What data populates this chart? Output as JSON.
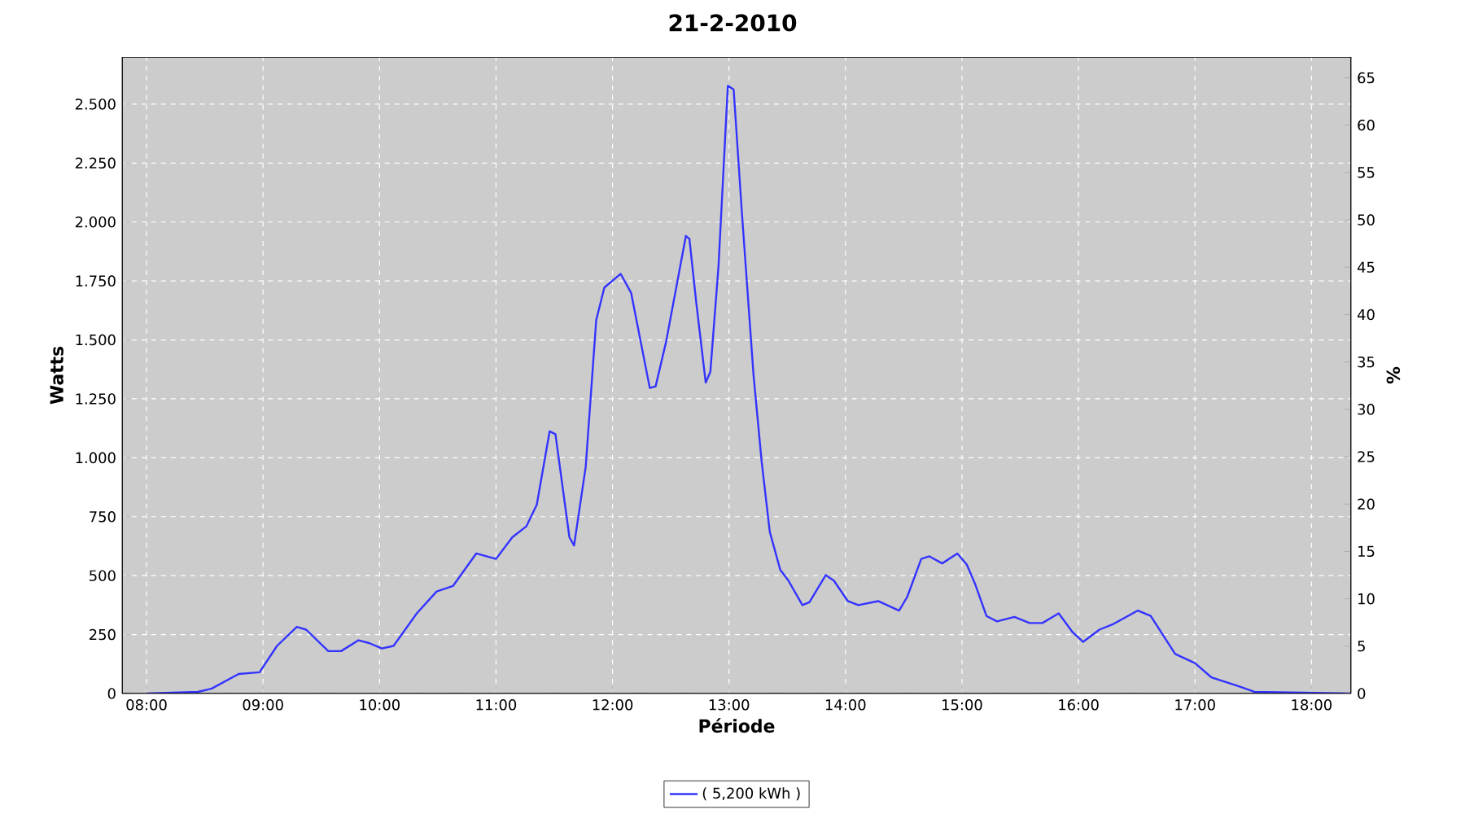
{
  "chart_data": {
    "type": "line",
    "title": "21-2-2010",
    "xlabel": "Période",
    "ylabel": "Watts",
    "y2label": "%",
    "x": [
      8.0,
      8.44,
      8.56,
      8.79,
      8.97,
      9.12,
      9.29,
      9.37,
      9.56,
      9.67,
      9.82,
      9.91,
      10.02,
      10.12,
      10.32,
      10.49,
      10.63,
      10.83,
      11.0,
      11.14,
      11.26,
      11.35,
      11.46,
      11.51,
      11.63,
      11.67,
      11.77,
      11.86,
      11.93,
      12.07,
      12.16,
      12.32,
      12.37,
      12.46,
      12.63,
      12.66,
      12.72,
      12.8,
      12.84,
      12.91,
      12.99,
      13.04,
      13.11,
      13.21,
      13.28,
      13.35,
      13.44,
      13.51,
      13.63,
      13.69,
      13.83,
      13.9,
      14.02,
      14.11,
      14.28,
      14.46,
      14.53,
      14.65,
      14.72,
      14.83,
      14.96,
      15.04,
      15.11,
      15.21,
      15.3,
      15.45,
      15.58,
      15.69,
      15.83,
      15.95,
      16.04,
      16.18,
      16.3,
      16.51,
      16.62,
      16.83,
      17.0,
      17.14,
      17.34,
      17.51,
      18.34
    ],
    "series": [
      {
        "name": "( 5,200 kWh )",
        "color": "#3333ff",
        "values": [
          0,
          7,
          21,
          83,
          90,
          202,
          283,
          271,
          180,
          180,
          226,
          214,
          191,
          202,
          340,
          433,
          456,
          594,
          571,
          663,
          709,
          801,
          1112,
          1100,
          663,
          628,
          962,
          1584,
          1722,
          1780,
          1699,
          1296,
          1303,
          1492,
          1941,
          1929,
          1653,
          1319,
          1365,
          1814,
          2578,
          2562,
          2044,
          1354,
          985,
          686,
          525,
          479,
          375,
          387,
          502,
          479,
          392,
          375,
          392,
          352,
          410,
          571,
          582,
          552,
          594,
          548,
          468,
          329,
          306,
          325,
          299,
          299,
          340,
          260,
          219,
          271,
          295,
          352,
          329,
          168,
          129,
          69,
          37,
          7,
          0
        ]
      }
    ],
    "xlim": [
      7.79,
      18.34
    ],
    "xticks": [
      {
        "value": 8,
        "label": "08:00"
      },
      {
        "value": 9,
        "label": "09:00"
      },
      {
        "value": 10,
        "label": "10:00"
      },
      {
        "value": 11,
        "label": "11:00"
      },
      {
        "value": 12,
        "label": "12:00"
      },
      {
        "value": 13,
        "label": "13:00"
      },
      {
        "value": 14,
        "label": "14:00"
      },
      {
        "value": 15,
        "label": "15:00"
      },
      {
        "value": 16,
        "label": "16:00"
      },
      {
        "value": 17,
        "label": "17:00"
      },
      {
        "value": 18,
        "label": "18:00"
      }
    ],
    "ylim": [
      0,
      2700
    ],
    "yticks": [
      0,
      250,
      500,
      750,
      {
        "value": 1000,
        "label": "1.000"
      },
      {
        "value": 1250,
        "label": "1.250"
      },
      {
        "value": 1500,
        "label": "1.500"
      },
      {
        "value": 1750,
        "label": "1.750"
      },
      {
        "value": 2000,
        "label": "2.000"
      },
      {
        "value": 2250,
        "label": "2.250"
      },
      {
        "value": 2500,
        "label": "2.500"
      }
    ],
    "y2lim": [
      0,
      67.2
    ],
    "y2ticks": [
      0,
      5,
      10,
      15,
      20,
      25,
      30,
      35,
      40,
      45,
      50,
      55,
      60,
      65
    ],
    "grid": true,
    "legend": "bottom",
    "marker": "none",
    "line_style": "solid"
  }
}
